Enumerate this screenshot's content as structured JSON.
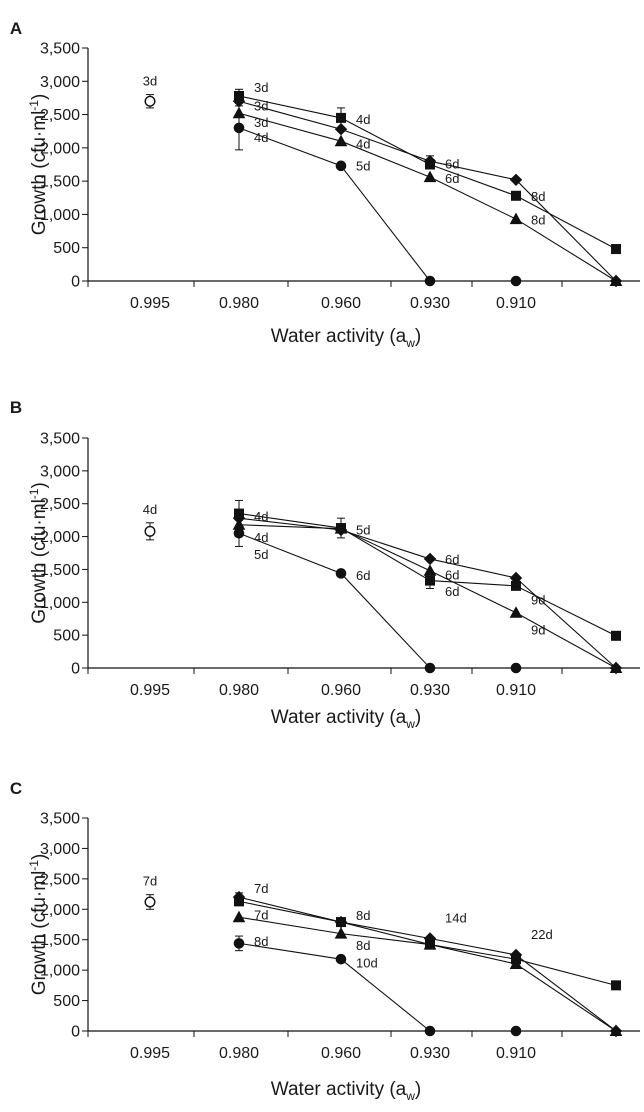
{
  "chart_data": [
    {
      "type": "line",
      "panel": "A",
      "xlabel": "Water activity (a_w)",
      "ylabel": "Growth (cfu·ml⁻¹)",
      "categories": [
        "0.995",
        "0.980",
        "0.960",
        "0.930",
        "0.910",
        ""
      ],
      "y_ticks": [
        "0",
        "500",
        "1,000",
        "1,500",
        "2,000",
        "2,500",
        "3,000",
        "3,500"
      ],
      "ylim": [
        0,
        3500
      ],
      "control": {
        "value": 2700,
        "err": 100,
        "label": "3d"
      },
      "series": [
        {
          "marker": "square",
          "values": [
            null,
            2780,
            2450,
            1750,
            1280,
            480
          ],
          "err": [
            null,
            100,
            150,
            null,
            null,
            null
          ]
        },
        {
          "marker": "diamond",
          "values": [
            null,
            2700,
            2280,
            1800,
            1520,
            0
          ],
          "err": [
            null,
            null,
            null,
            80,
            null,
            null
          ]
        },
        {
          "marker": "triangle",
          "values": [
            null,
            2520,
            2100,
            1560,
            930,
            0
          ],
          "err": [
            null,
            null,
            null,
            null,
            null,
            null
          ]
        },
        {
          "marker": "circle",
          "values": [
            null,
            2300,
            1730,
            0,
            0,
            null
          ],
          "err": [
            null,
            330,
            null,
            null,
            null,
            null
          ]
        }
      ],
      "annotations": [
        {
          "text": "3d",
          "cat": 1,
          "y": 2900
        },
        {
          "text": "3d",
          "cat": 1,
          "y": 2620
        },
        {
          "text": "3d",
          "cat": 1,
          "y": 2370
        },
        {
          "text": "4d",
          "cat": 1,
          "y": 2150
        },
        {
          "text": "4d",
          "cat": 2,
          "y": 2420
        },
        {
          "text": "4d",
          "cat": 2,
          "y": 2050
        },
        {
          "text": "5d",
          "cat": 2,
          "y": 1720
        },
        {
          "text": "6d",
          "cat": 3,
          "y": 1750
        },
        {
          "text": "6d",
          "cat": 3,
          "y": 1530
        },
        {
          "text": "8d",
          "cat": 4,
          "y": 1260
        },
        {
          "text": "8d",
          "cat": 4,
          "y": 910
        }
      ]
    },
    {
      "type": "line",
      "panel": "B",
      "xlabel": "Water activity (a_w)",
      "ylabel": "Growth (cfu·ml⁻¹)",
      "categories": [
        "0.995",
        "0.980",
        "0.960",
        "0.930",
        "0.910",
        ""
      ],
      "y_ticks": [
        "0",
        "500",
        "1,000",
        "1,500",
        "2,000",
        "2,500",
        "3,000",
        "3,500"
      ],
      "ylim": [
        0,
        3500
      ],
      "control": {
        "value": 2080,
        "err": 130,
        "label": "4d"
      },
      "series": [
        {
          "marker": "square",
          "values": [
            null,
            2350,
            2130,
            1330,
            1250,
            490
          ],
          "err": [
            null,
            200,
            150,
            120,
            null,
            null
          ]
        },
        {
          "marker": "diamond",
          "values": [
            null,
            2280,
            2100,
            1660,
            1370,
            0
          ],
          "err": [
            null,
            null,
            null,
            null,
            null,
            null
          ]
        },
        {
          "marker": "triangle",
          "values": [
            null,
            2180,
            2120,
            1480,
            840,
            0
          ],
          "err": [
            null,
            null,
            null,
            null,
            null,
            null
          ]
        },
        {
          "marker": "circle",
          "values": [
            null,
            2050,
            1440,
            0,
            0,
            null
          ],
          "err": [
            null,
            200,
            null,
            null,
            null,
            null
          ]
        }
      ],
      "annotations": [
        {
          "text": "4d",
          "cat": 1,
          "y": 2300
        },
        {
          "text": "4d",
          "cat": 1,
          "y": 1980
        },
        {
          "text": "5d",
          "cat": 1,
          "y": 1720
        },
        {
          "text": "5d",
          "cat": 2,
          "y": 2090
        },
        {
          "text": "6d",
          "cat": 2,
          "y": 1400
        },
        {
          "text": "6d",
          "cat": 3,
          "y": 1640
        },
        {
          "text": "6d",
          "cat": 3,
          "y": 1410
        },
        {
          "text": "6d",
          "cat": 3,
          "y": 1160
        },
        {
          "text": "9d",
          "cat": 4,
          "y": 1030
        },
        {
          "text": "9d",
          "cat": 4,
          "y": 570
        }
      ]
    },
    {
      "type": "line",
      "panel": "C",
      "xlabel": "Water activity (a_w)",
      "ylabel": "Growth (cfu·ml⁻¹)",
      "categories": [
        "0.995",
        "0.980",
        "0.960",
        "0.930",
        "0.910",
        ""
      ],
      "y_ticks": [
        "0",
        "500",
        "1,000",
        "1,500",
        "2,000",
        "2,500",
        "3,000",
        "3,500"
      ],
      "ylim": [
        0,
        3500
      ],
      "control": {
        "value": 2120,
        "err": 120,
        "label": "7d"
      },
      "series": [
        {
          "marker": "square",
          "values": [
            null,
            2130,
            1790,
            1420,
            1180,
            750
          ],
          "err": [
            null,
            null,
            null,
            null,
            null,
            null
          ]
        },
        {
          "marker": "diamond",
          "values": [
            null,
            2200,
            1790,
            1520,
            1250,
            0
          ],
          "err": [
            null,
            70,
            null,
            null,
            null,
            null
          ]
        },
        {
          "marker": "triangle",
          "values": [
            null,
            1870,
            1600,
            1420,
            1100,
            0
          ],
          "err": [
            null,
            null,
            null,
            null,
            null,
            null
          ]
        },
        {
          "marker": "circle",
          "values": [
            null,
            1440,
            1180,
            0,
            0,
            null
          ],
          "err": [
            null,
            120,
            null,
            null,
            null,
            null
          ]
        }
      ],
      "annotations": [
        {
          "text": "7d",
          "cat": 1,
          "y": 2330
        },
        {
          "text": "7d",
          "cat": 1,
          "y": 1900
        },
        {
          "text": "8d",
          "cat": 1,
          "y": 1460
        },
        {
          "text": "8d",
          "cat": 2,
          "y": 1890
        },
        {
          "text": "8d",
          "cat": 2,
          "y": 1400
        },
        {
          "text": "10d",
          "cat": 2,
          "y": 1110
        },
        {
          "text": "14d",
          "cat": 3,
          "y": 1850
        },
        {
          "text": "22d",
          "cat": 4,
          "y": 1580
        }
      ]
    }
  ]
}
